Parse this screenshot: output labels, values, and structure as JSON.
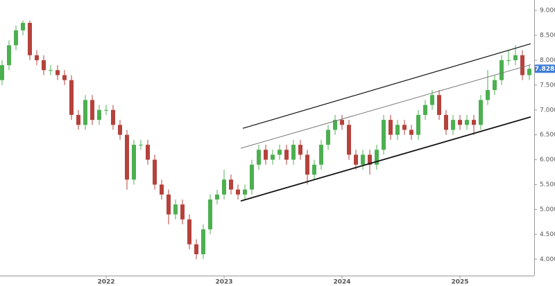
{
  "chart_data": {
    "type": "candlestick",
    "categories": [
      null,
      null,
      null,
      null,
      null,
      null,
      null,
      null,
      null,
      null,
      null,
      null,
      null,
      null,
      null,
      "2022",
      null,
      null,
      null,
      null,
      null,
      null,
      null,
      null,
      null,
      null,
      null,
      null,
      null,
      null,
      null,
      null,
      "2023",
      null,
      null,
      null,
      null,
      null,
      null,
      null,
      null,
      null,
      null,
      null,
      null,
      null,
      null,
      null,
      null,
      "2024",
      null,
      null,
      null,
      null,
      null,
      null,
      null,
      null,
      null,
      null,
      null,
      null,
      null,
      null,
      null,
      null,
      "2025",
      null,
      null,
      null,
      null,
      null,
      null,
      null,
      null,
      null,
      null
    ],
    "open": [
      7.6,
      7.9,
      8.3,
      8.6,
      8.75,
      8.1,
      8.0,
      7.8,
      7.8,
      7.7,
      7.6,
      6.9,
      6.7,
      7.2,
      6.8,
      7.0,
      7.0,
      6.7,
      6.5,
      5.6,
      6.3,
      6.3,
      6.0,
      5.5,
      5.3,
      4.9,
      5.1,
      4.8,
      4.3,
      4.1,
      4.6,
      5.2,
      5.3,
      5.6,
      5.4,
      5.3,
      5.4,
      5.9,
      6.2,
      6.0,
      6.1,
      6.2,
      6.0,
      6.3,
      6.1,
      5.7,
      5.9,
      6.3,
      6.6,
      6.8,
      6.7,
      6.1,
      5.9,
      6.1,
      5.9,
      6.2,
      6.8,
      6.5,
      6.7,
      6.6,
      6.5,
      6.9,
      7.1,
      7.3,
      6.9,
      6.6,
      6.8,
      6.7,
      6.8,
      6.7,
      7.2,
      7.4,
      7.6,
      8.0,
      8.0,
      8.1,
      7.7
    ],
    "high": [
      8.0,
      8.4,
      8.7,
      8.8,
      8.8,
      8.2,
      8.1,
      7.9,
      7.9,
      7.8,
      7.7,
      7.0,
      7.3,
      7.3,
      7.1,
      7.1,
      7.1,
      6.8,
      6.6,
      6.4,
      6.4,
      6.4,
      6.1,
      5.6,
      5.4,
      5.2,
      5.2,
      4.9,
      4.4,
      4.7,
      5.3,
      5.4,
      5.8,
      5.7,
      5.5,
      5.5,
      6.0,
      6.3,
      6.3,
      6.2,
      6.3,
      6.3,
      6.4,
      6.4,
      6.2,
      6.0,
      6.4,
      6.7,
      6.9,
      6.9,
      6.8,
      6.2,
      6.2,
      6.2,
      6.3,
      6.9,
      6.9,
      6.8,
      6.8,
      6.7,
      7.0,
      7.2,
      7.4,
      7.4,
      7.0,
      6.9,
      6.9,
      6.9,
      6.9,
      7.3,
      7.8,
      7.7,
      8.1,
      8.2,
      8.3,
      8.2,
      7.9
    ],
    "low": [
      7.5,
      7.8,
      8.2,
      8.5,
      8.0,
      7.9,
      7.7,
      7.7,
      7.6,
      7.5,
      6.8,
      6.6,
      6.6,
      6.7,
      6.7,
      6.9,
      6.6,
      6.4,
      5.4,
      5.5,
      6.2,
      5.9,
      5.4,
      5.2,
      4.7,
      4.8,
      4.7,
      4.2,
      4.0,
      4.0,
      4.5,
      5.1,
      5.2,
      5.3,
      5.2,
      5.2,
      5.3,
      5.8,
      5.9,
      5.9,
      6.0,
      5.9,
      5.9,
      6.0,
      5.5,
      5.6,
      5.8,
      6.2,
      6.5,
      6.6,
      6.0,
      5.8,
      5.8,
      5.7,
      5.8,
      6.1,
      6.4,
      6.4,
      6.5,
      6.4,
      6.4,
      6.8,
      7.0,
      6.8,
      6.5,
      6.5,
      6.6,
      6.6,
      6.5,
      6.6,
      7.1,
      7.3,
      7.5,
      7.9,
      7.9,
      7.6,
      7.6
    ],
    "close": [
      7.9,
      8.3,
      8.6,
      8.75,
      8.1,
      8.0,
      7.8,
      7.8,
      7.7,
      7.6,
      6.9,
      6.7,
      7.2,
      6.8,
      7.0,
      7.0,
      6.7,
      6.5,
      5.6,
      6.3,
      6.3,
      6.0,
      5.5,
      5.3,
      4.9,
      5.1,
      4.8,
      4.3,
      4.1,
      4.6,
      5.2,
      5.3,
      5.6,
      5.4,
      5.3,
      5.4,
      5.9,
      6.2,
      6.0,
      6.1,
      6.2,
      6.0,
      6.3,
      6.1,
      5.7,
      5.9,
      6.3,
      6.6,
      6.8,
      6.7,
      6.1,
      5.9,
      6.1,
      5.9,
      6.2,
      6.8,
      6.5,
      6.7,
      6.6,
      6.5,
      6.9,
      7.1,
      7.3,
      6.9,
      6.6,
      6.8,
      6.7,
      6.8,
      6.7,
      7.2,
      7.4,
      7.6,
      8.0,
      8.0,
      8.1,
      7.7,
      7.828
    ],
    "up_color": "#4caf50",
    "down_color": "#b5423c",
    "ylim": [
      3.67,
      9.21
    ],
    "yticks": [
      {
        "value": 4,
        "label": "4.000"
      },
      {
        "value": 4.5,
        "label": "4.500"
      },
      {
        "value": 5,
        "label": "5.000"
      },
      {
        "value": 5.5,
        "label": "5.500"
      },
      {
        "value": 6,
        "label": "6.000"
      },
      {
        "value": 6.5,
        "label": "6.500"
      },
      {
        "value": 7,
        "label": "7.000"
      },
      {
        "value": 7.5,
        "label": "7.500"
      },
      {
        "value": 8,
        "label": "8.000"
      },
      {
        "value": 8.5,
        "label": "8.500"
      },
      {
        "value": 9,
        "label": "9.000"
      }
    ],
    "last_price": {
      "value": 7.828,
      "label": "7.828",
      "color": "#3d7dd8"
    },
    "channel_lines": [
      {
        "x": [
          34.7,
          76.2
        ],
        "y": [
          6.63,
          8.33
        ],
        "color": "#111111",
        "width": 1.2
      },
      {
        "x": [
          34.4,
          76.2
        ],
        "y": [
          6.23,
          7.91
        ],
        "color": "#777777",
        "width": 1
      },
      {
        "x": [
          34.4,
          76.2
        ],
        "y": [
          5.17,
          6.86
        ],
        "color": "#111111",
        "width": 1.8
      }
    ]
  }
}
